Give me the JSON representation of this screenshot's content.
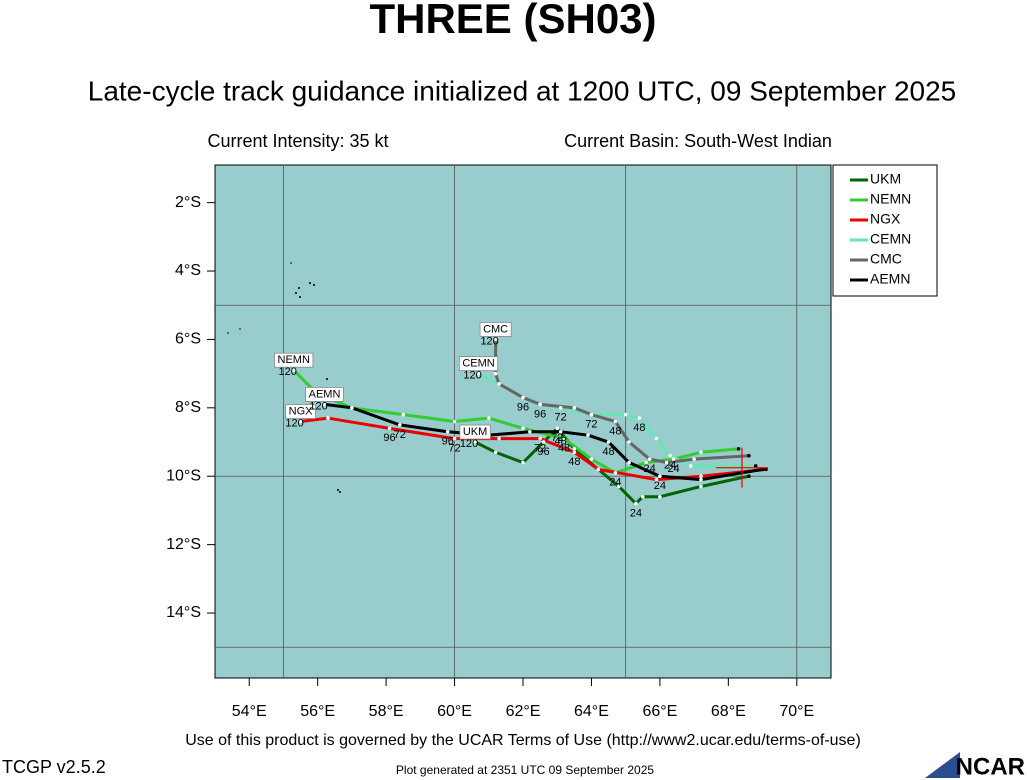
{
  "chart_data": {
    "type": "track",
    "title": "THREE (SH03)",
    "subtitle": "Late-cycle track guidance initialized at 1200 UTC, 09 September 2025",
    "intensity": "Current Intensity: 35 kt",
    "basin": "Current Basin: South-West Indian",
    "xlim": [
      53,
      71
    ],
    "ylim": [
      -15.9,
      -0.9
    ],
    "xticks": [
      {
        "value": 54,
        "label": "54°E"
      },
      {
        "value": 56,
        "label": "56°E"
      },
      {
        "value": 58,
        "label": "58°E"
      },
      {
        "value": 60,
        "label": "60°E"
      },
      {
        "value": 62,
        "label": "62°E"
      },
      {
        "value": 64,
        "label": "64°E"
      },
      {
        "value": 66,
        "label": "66°E"
      },
      {
        "value": 68,
        "label": "68°E"
      },
      {
        "value": 70,
        "label": "70°E"
      }
    ],
    "yticks": [
      {
        "value": -2,
        "label": "2°S"
      },
      {
        "value": -4,
        "label": "4°S"
      },
      {
        "value": -6,
        "label": "6°S"
      },
      {
        "value": -8,
        "label": "8°S"
      },
      {
        "value": -10,
        "label": "10°S"
      },
      {
        "value": -12,
        "label": "12°S"
      },
      {
        "value": -14,
        "label": "14°S"
      }
    ],
    "grid_x": [
      55,
      60,
      65,
      70
    ],
    "grid_y": [
      -5,
      -10,
      -15
    ],
    "storm_position": [
      68.4,
      -9.75
    ],
    "series": [
      {
        "name": "UKM",
        "color": "#006400",
        "x": [
          68.6,
          67.2,
          66.0,
          65.5,
          65.3,
          64.8,
          64.2,
          63.5,
          63.0,
          62.6,
          62.0,
          61.2,
          60.6
        ],
        "values": [
          -10.0,
          -10.3,
          -10.6,
          -10.6,
          -10.8,
          -10.3,
          -9.8,
          -9.2,
          -8.6,
          -9.0,
          -9.6,
          -9.3,
          -9.0
        ],
        "hour_labels": [
          null,
          null,
          null,
          null,
          "24",
          null,
          null,
          null,
          "72",
          "96",
          null,
          null,
          "120"
        ]
      },
      {
        "name": "NEMN",
        "color": "#33cc33",
        "x": [
          68.3,
          67.2,
          66.4,
          65.6,
          64.7,
          64.0,
          63.2,
          62.0,
          61.0,
          60.0,
          58.5,
          57.0,
          56.0,
          55.3
        ],
        "values": [
          -9.2,
          -9.3,
          -9.5,
          -9.6,
          -9.9,
          -9.5,
          -8.9,
          -8.6,
          -8.3,
          -8.4,
          -8.2,
          -8.0,
          -7.6,
          -6.9
        ],
        "hour_labels": [
          null,
          null,
          "24",
          null,
          "24",
          null,
          "48",
          null,
          null,
          null,
          null,
          null,
          null,
          "120"
        ]
      },
      {
        "name": "NGX",
        "color": "#ee0000",
        "x": [
          69.1,
          67.2,
          65.9,
          64.2,
          63.5,
          62.5,
          61.3,
          60.0,
          58.1,
          56.3,
          55.5
        ],
        "values": [
          -9.8,
          -10.0,
          -10.1,
          -9.8,
          -9.3,
          -8.9,
          -8.9,
          -8.9,
          -8.6,
          -8.3,
          -8.4
        ],
        "hour_labels": [
          null,
          null,
          null,
          null,
          "48",
          "72",
          null,
          "72",
          "96",
          null,
          "120"
        ]
      },
      {
        "name": "CEMN",
        "color": "#66e6b3",
        "x": [
          68.8,
          66.9,
          66.3,
          65.9,
          65.4,
          65.0,
          64.0,
          63.1,
          62.5,
          62.0,
          61.3,
          60.7
        ],
        "values": [
          -9.7,
          -9.7,
          -9.4,
          -8.9,
          -8.3,
          -8.2,
          -8.2,
          -8.0,
          -7.9,
          -7.7,
          -7.3,
          -7.0
        ],
        "hour_labels": [
          null,
          null,
          "24",
          null,
          "48",
          null,
          null,
          "72",
          null,
          "96",
          null,
          "120"
        ]
      },
      {
        "name": "CMC",
        "color": "#666666",
        "x": [
          68.6,
          67.0,
          66.2,
          65.7,
          65.1,
          64.7,
          64.0,
          63.5,
          62.5,
          62.0,
          61.3,
          61.2,
          61.2
        ],
        "values": [
          -9.4,
          -9.5,
          -9.6,
          -9.5,
          -9.0,
          -8.4,
          -8.2,
          -8.0,
          -7.9,
          -7.7,
          -7.3,
          -7.0,
          -6.0
        ],
        "hour_labels": [
          null,
          null,
          null,
          "24",
          null,
          "48",
          "72",
          null,
          "96",
          null,
          null,
          null,
          "120"
        ]
      },
      {
        "name": "AEMN",
        "color": "#000000",
        "x": [
          69.0,
          67.2,
          66.0,
          65.1,
          64.5,
          63.9,
          63.1,
          62.2,
          61.0,
          59.8,
          58.4,
          57.0,
          56.2
        ],
        "values": [
          -9.8,
          -10.1,
          -10.0,
          -9.6,
          -9.0,
          -8.8,
          -8.7,
          -8.7,
          -8.8,
          -8.7,
          -8.5,
          -8.0,
          -7.9
        ],
        "hour_labels": [
          null,
          null,
          "24",
          null,
          "48",
          null,
          "48",
          null,
          null,
          "96",
          "72",
          null,
          "120"
        ]
      }
    ],
    "terms": "Use of this product is governed by the UCAR Terms of Use (http://www2.ucar.edu/terms-of-use)",
    "version": "TCGP v2.5.2",
    "generated": "Plot generated at 2351 UTC  09 September 2025",
    "logo": "NCAR"
  }
}
